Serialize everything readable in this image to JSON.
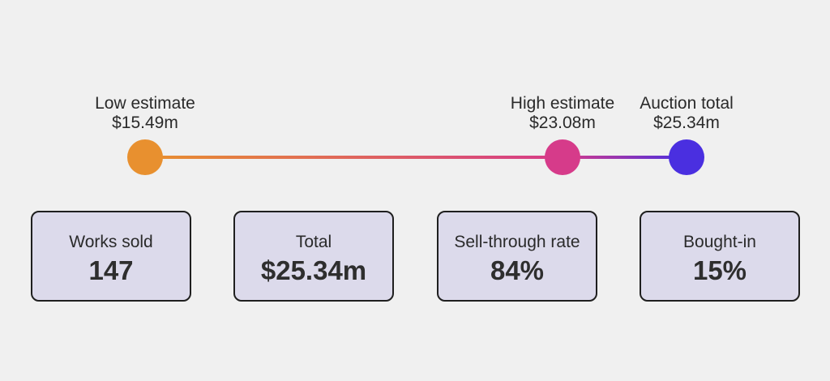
{
  "range": {
    "gradient_colors": [
      "#e8902f",
      "#d63b8a",
      "#4a2fe0"
    ],
    "markers": [
      {
        "label": "Low estimate",
        "value": "$15.49m",
        "amount_m": 15.49,
        "color": "#e8902f"
      },
      {
        "label": "High estimate",
        "value": "$23.08m",
        "amount_m": 23.08,
        "color": "#d63b8a"
      },
      {
        "label": "Auction total",
        "value": "$25.34m",
        "amount_m": 25.34,
        "color": "#4a2fe0"
      }
    ]
  },
  "stats": [
    {
      "label": "Works sold",
      "value": "147"
    },
    {
      "label": "Total",
      "value": "$25.34m"
    },
    {
      "label": "Sell-through rate",
      "value": "84%"
    },
    {
      "label": "Bought-in",
      "value": "15%"
    }
  ],
  "colors": {
    "background": "#f0f0f0",
    "card_fill": "#dcdaeb",
    "card_border": "#1f1f1f"
  }
}
